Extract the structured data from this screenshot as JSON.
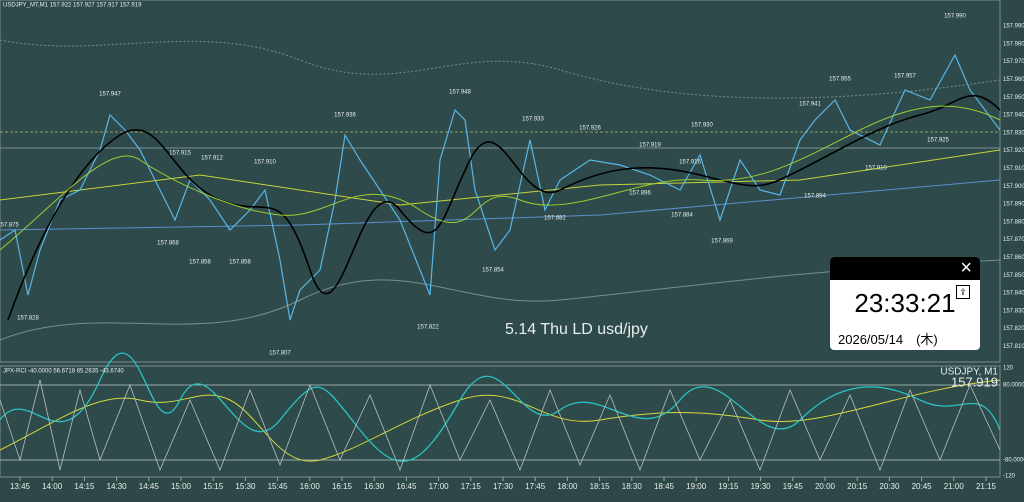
{
  "header": {
    "main": "USDJPY_MT,M1  157.922 157.927 157.917 157.919",
    "oscillator": "JPX-RCI -40.0000 56.6718 65.2635 -43.6740",
    "symbol": "USDJPY, M1",
    "price": "157.919"
  },
  "price_axis": [
    "157.990",
    "157.980",
    "157.970",
    "157.960",
    "157.950",
    "157.940",
    "157.930",
    "157.920",
    "157.910",
    "157.900",
    "157.890",
    "157.880",
    "157.870",
    "157.860",
    "157.850",
    "157.840",
    "157.830",
    "157.820",
    "157.810"
  ],
  "oscillator_axis": [
    "120",
    "80.0000",
    "-80.0000",
    "-120"
  ],
  "time_axis": [
    "13:45",
    "14:00",
    "14:15",
    "14:30",
    "14:45",
    "15:00",
    "15:15",
    "15:30",
    "15:45",
    "16:00",
    "16:15",
    "16:30",
    "16:45",
    "17:00",
    "17:15",
    "17:30",
    "17:45",
    "18:00",
    "18:15",
    "18:30",
    "18:45",
    "19:00",
    "19:15",
    "19:30",
    "19:45",
    "20:00",
    "20:15",
    "20:30",
    "20:45",
    "21:00",
    "21:15"
  ],
  "price_labels": [
    "157.875",
    "157.828",
    "157.947",
    "157.915",
    "157.912",
    "157.910",
    "157.868",
    "157.858",
    "157.858",
    "157.807",
    "157.936",
    "157.948",
    "157.822",
    "157.854",
    "157.933",
    "157.926",
    "157.882",
    "157.919",
    "157.896",
    "157.930",
    "157.916",
    "157.884",
    "157.869",
    "157.941",
    "157.955",
    "157.957",
    "157.990",
    "157.925",
    "157.910",
    "157.894"
  ],
  "annotation": "5.14 Thu LD usd/jpy",
  "clock": {
    "time": "23:33:21",
    "date": "2026/05/14　(木)",
    "close": "×"
  }
}
